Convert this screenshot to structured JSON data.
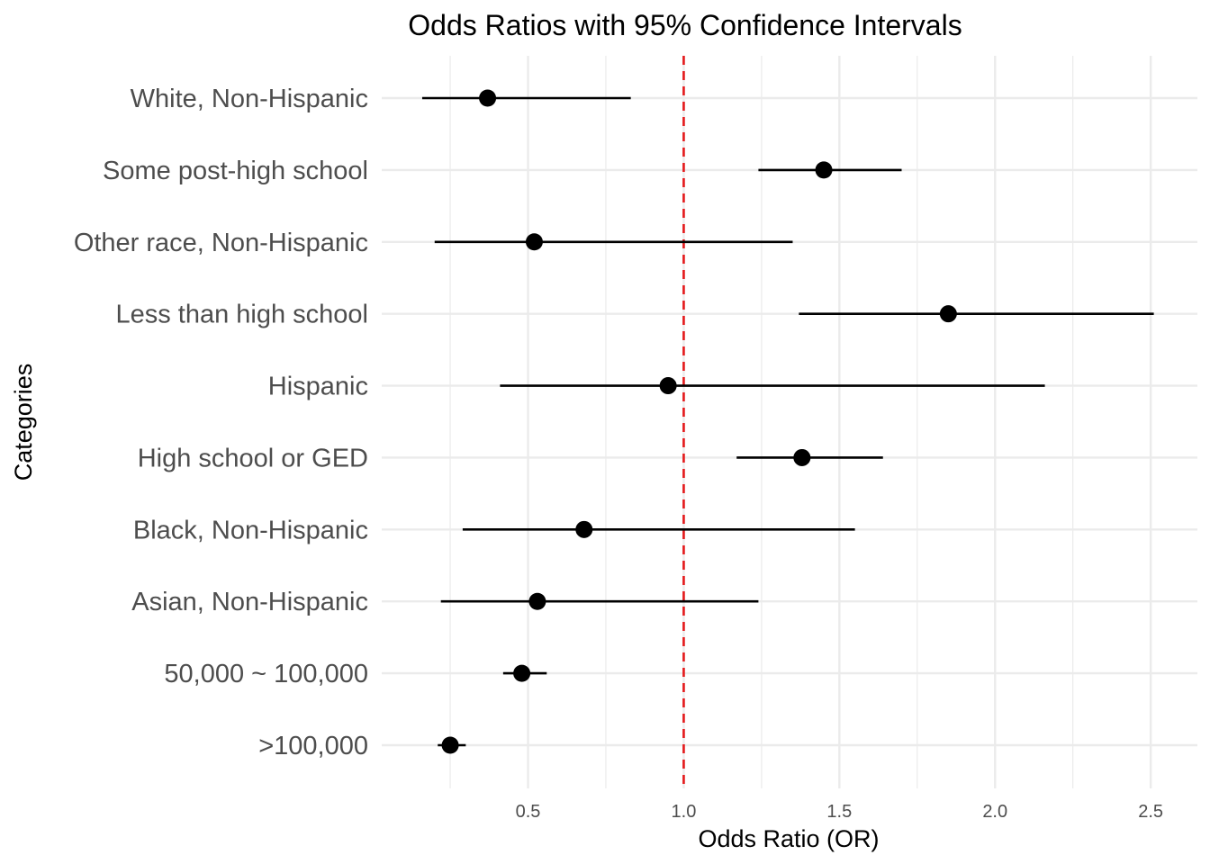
{
  "chart_data": {
    "type": "scatter",
    "subtype": "forest-plot",
    "title": "Odds Ratios with 95% Confidence Intervals",
    "xlabel": "Odds Ratio (OR)",
    "ylabel": "Categories",
    "xlim": [
      0.03,
      2.65
    ],
    "x_ticks": [
      0.5,
      1.0,
      1.5,
      2.0,
      2.5
    ],
    "x_tick_labels": [
      "0.5",
      "1.0",
      "1.5",
      "2.0",
      "2.5"
    ],
    "grid": true,
    "reference_line": {
      "x": 1.0,
      "style": "dashed",
      "color": "#e41a1c"
    },
    "point_color": "#000000",
    "categories": [
      ">100,000",
      "50,000 ~ 100,000",
      "Asian, Non-Hispanic",
      "Black, Non-Hispanic",
      "High school or GED",
      "Hispanic",
      "Less than high school",
      "Other race, Non-Hispanic",
      "Some post-high school",
      "White, Non-Hispanic"
    ],
    "or": [
      0.25,
      0.48,
      0.53,
      0.68,
      1.38,
      0.95,
      1.85,
      0.52,
      1.45,
      0.37
    ],
    "lower": [
      0.21,
      0.42,
      0.22,
      0.29,
      1.17,
      0.41,
      1.37,
      0.2,
      1.24,
      0.16
    ],
    "upper": [
      0.3,
      0.56,
      1.24,
      1.55,
      1.64,
      2.16,
      2.51,
      1.35,
      1.7,
      0.83
    ]
  }
}
